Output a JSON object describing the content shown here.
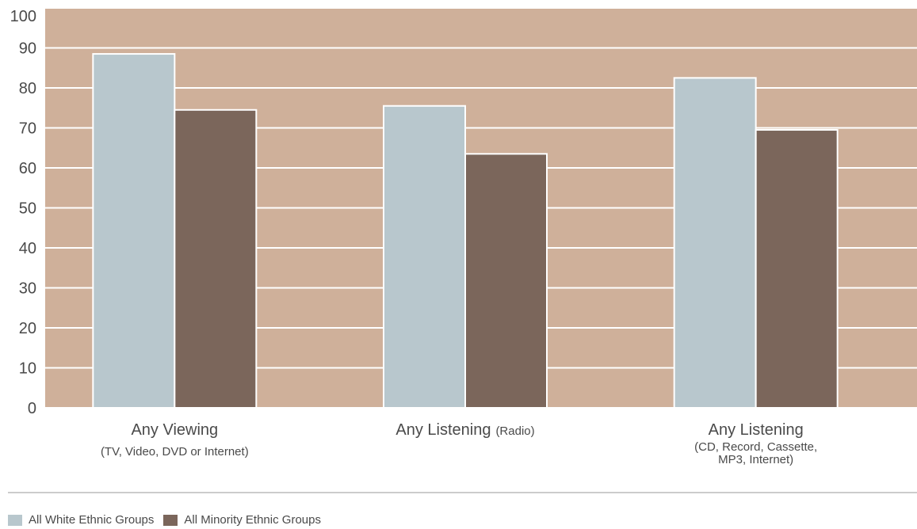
{
  "chart_data": {
    "type": "bar",
    "categories": [
      {
        "label": "Any Viewing",
        "sub": [
          "(TV, Video, DVD or Internet)"
        ]
      },
      {
        "label": "Any Listening",
        "inline_sub": "(Radio)",
        "sub": []
      },
      {
        "label": "Any Listening",
        "sub": [
          "(CD, Record, Cassette,",
          "MP3, Internet)"
        ]
      }
    ],
    "series": [
      {
        "name": "All White Ethnic Groups",
        "color": "#b8c7cd",
        "values": [
          88.5,
          75.5,
          82.5
        ]
      },
      {
        "name": "All Minority Ethnic Groups",
        "color": "#7b665b",
        "values": [
          74.5,
          63.5,
          69.5
        ]
      }
    ],
    "yticks": [
      "0",
      "10",
      "20",
      "30",
      "40",
      "50",
      "60",
      "70",
      "80",
      "90",
      "100"
    ],
    "ylim": [
      0,
      100
    ],
    "grid": true,
    "plot_background": "#cfb09a",
    "legend_position": "bottom-left"
  }
}
